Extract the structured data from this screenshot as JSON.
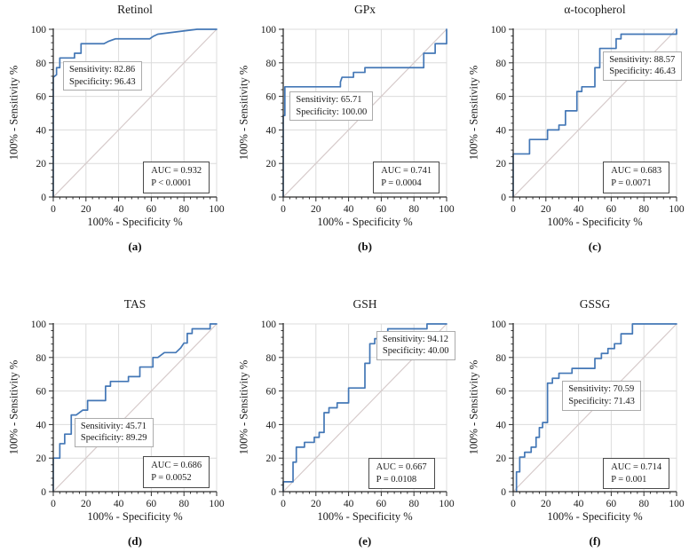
{
  "figure": {
    "layout": "2x3-roc-grid",
    "x_ticks": [
      0,
      20,
      40,
      60,
      80,
      100
    ],
    "y_ticks": [
      0,
      20,
      40,
      60,
      80,
      100
    ],
    "xlim": [
      0,
      100
    ],
    "ylim": [
      0,
      100
    ],
    "grid": true,
    "minor_tick_step": 4,
    "colors": {
      "roc_line": "#4377b6",
      "diagonal": "#d6caca",
      "grid": "#dcdcdc",
      "axis": "#2e2e2e",
      "text": "#1a1a1a",
      "sens_box_border": "#ababab",
      "auc_box_border": "#4a4a4a",
      "background": "#ffffff"
    }
  },
  "chart_data": [
    {
      "type": "line",
      "title": "Retinol",
      "panel_label": "(a)",
      "xlabel": "100% - Specificity %",
      "ylabel": "100% - Sensitivity %",
      "sensitivity": 82.86,
      "specificity": 96.43,
      "auc": 0.932,
      "p_value": "P < 0.0001",
      "sens_box": {
        "lines": [
          "Sensitivity: 82.86",
          "Specificity: 96.43"
        ],
        "x": 6,
        "y": 81
      },
      "auc_box": {
        "lines": [
          "AUC = 0.932",
          "P < 0.0001"
        ],
        "x": 55,
        "y": 21
      },
      "roc_points": [
        [
          0,
          0
        ],
        [
          0,
          71.4
        ],
        [
          2,
          72.9
        ],
        [
          2,
          77.1
        ],
        [
          4,
          77.1
        ],
        [
          4,
          82.9
        ],
        [
          13,
          82.9
        ],
        [
          13,
          85.7
        ],
        [
          17,
          85.7
        ],
        [
          17,
          91.4
        ],
        [
          31,
          91.4
        ],
        [
          34,
          92.9
        ],
        [
          38,
          94.3
        ],
        [
          59,
          94.3
        ],
        [
          61,
          95.7
        ],
        [
          64,
          97.1
        ],
        [
          88,
          100
        ],
        [
          100,
          100
        ]
      ]
    },
    {
      "type": "line",
      "title": "GPx",
      "panel_label": "(b)",
      "xlabel": "100% - Specificity %",
      "ylabel": "100% - Sensitivity %",
      "sensitivity": 65.71,
      "specificity": 100.0,
      "auc": 0.741,
      "p_value": "P = 0.0004",
      "sens_box": {
        "lines": [
          "Sensitivity: 65.71",
          "Specificity: 100.00"
        ],
        "x": 4,
        "y": 63
      },
      "auc_box": {
        "lines": [
          "AUC = 0.741",
          "P = 0.0004"
        ],
        "x": 55,
        "y": 21
      },
      "roc_points": [
        [
          0,
          0
        ],
        [
          0,
          48.6
        ],
        [
          1,
          48.6
        ],
        [
          1,
          65.7
        ],
        [
          35,
          65.7
        ],
        [
          35,
          68.6
        ],
        [
          36,
          71.4
        ],
        [
          43,
          71.4
        ],
        [
          43,
          74.3
        ],
        [
          50,
          74.3
        ],
        [
          50,
          77.1
        ],
        [
          86,
          77.1
        ],
        [
          86,
          85.7
        ],
        [
          93,
          85.7
        ],
        [
          93,
          91.4
        ],
        [
          100,
          91.4
        ],
        [
          100,
          100
        ]
      ]
    },
    {
      "type": "line",
      "title": "α-tocopherol",
      "panel_label": "(c)",
      "xlabel": "100% - Specificity %",
      "ylabel": "100% - Sensitivity %",
      "sensitivity": 88.57,
      "specificity": 46.43,
      "auc": 0.683,
      "p_value": "P = 0.0071",
      "sens_box": {
        "lines": [
          "Sensitivity: 88.57",
          "Specificity: 46.43"
        ],
        "x": 55,
        "y": 87
      },
      "auc_box": {
        "lines": [
          "AUC = 0.683",
          "P = 0.0071"
        ],
        "x": 55,
        "y": 21
      },
      "roc_points": [
        [
          0,
          0
        ],
        [
          0,
          25.7
        ],
        [
          10,
          25.7
        ],
        [
          10,
          34.3
        ],
        [
          21,
          34.3
        ],
        [
          21,
          40
        ],
        [
          28,
          40
        ],
        [
          28,
          42.9
        ],
        [
          32,
          42.9
        ],
        [
          32,
          51.4
        ],
        [
          39,
          51.4
        ],
        [
          39,
          62.9
        ],
        [
          42,
          62.9
        ],
        [
          42,
          65.7
        ],
        [
          50,
          65.7
        ],
        [
          50,
          77.1
        ],
        [
          53,
          77.1
        ],
        [
          53,
          88.6
        ],
        [
          63,
          88.6
        ],
        [
          63,
          94.3
        ],
        [
          66,
          94.3
        ],
        [
          66,
          97.1
        ],
        [
          100,
          97.1
        ],
        [
          100,
          100
        ]
      ]
    },
    {
      "type": "line",
      "title": "TAS",
      "panel_label": "(d)",
      "xlabel": "100% - Specificity %",
      "ylabel": "100% - Sensitivity %",
      "sensitivity": 45.71,
      "specificity": 89.29,
      "auc": 0.686,
      "p_value": "P = 0.0052",
      "sens_box": {
        "lines": [
          "Sensitivity: 45.71",
          "Specificity: 89.29"
        ],
        "x": 13,
        "y": 44
      },
      "auc_box": {
        "lines": [
          "AUC = 0.686",
          "P = 0.0052"
        ],
        "x": 55,
        "y": 21
      },
      "roc_points": [
        [
          0,
          0
        ],
        [
          0,
          20
        ],
        [
          4,
          20
        ],
        [
          4,
          28.6
        ],
        [
          7,
          28.6
        ],
        [
          7,
          34.3
        ],
        [
          11,
          34.3
        ],
        [
          11,
          45.7
        ],
        [
          14,
          45.7
        ],
        [
          16,
          47.1
        ],
        [
          18,
          48.6
        ],
        [
          21,
          48.6
        ],
        [
          21,
          54.3
        ],
        [
          32,
          54.3
        ],
        [
          32,
          62.9
        ],
        [
          35,
          62.9
        ],
        [
          35,
          65.7
        ],
        [
          46,
          65.7
        ],
        [
          46,
          68.6
        ],
        [
          53,
          68.6
        ],
        [
          53,
          74.3
        ],
        [
          61,
          74.3
        ],
        [
          61,
          80
        ],
        [
          64,
          80
        ],
        [
          68,
          82.9
        ],
        [
          75,
          82.9
        ],
        [
          78,
          85.7
        ],
        [
          80,
          88.6
        ],
        [
          82,
          88.6
        ],
        [
          82,
          94.3
        ],
        [
          85,
          94.3
        ],
        [
          85,
          97.1
        ],
        [
          96,
          97.1
        ],
        [
          96,
          100
        ],
        [
          100,
          100
        ]
      ]
    },
    {
      "type": "line",
      "title": "GSH",
      "panel_label": "(e)",
      "xlabel": "100% - Specificity %",
      "ylabel": "100% - Sensitivity %",
      "sensitivity": 94.12,
      "specificity": 40.0,
      "auc": 0.667,
      "p_value": "P = 0.0108",
      "sens_box": {
        "lines": [
          "Sensitivity: 94.12",
          "Specificity: 40.00"
        ],
        "x": 57,
        "y": 96
      },
      "auc_box": {
        "lines": [
          "AUC = 0.667",
          "P = 0.0108"
        ],
        "x": 52,
        "y": 20
      },
      "roc_points": [
        [
          0,
          0
        ],
        [
          0,
          5.9
        ],
        [
          6,
          5.9
        ],
        [
          6,
          17.6
        ],
        [
          8,
          17.6
        ],
        [
          8,
          26.5
        ],
        [
          13,
          26.5
        ],
        [
          13,
          29.4
        ],
        [
          19,
          29.4
        ],
        [
          19,
          32.4
        ],
        [
          22,
          32.4
        ],
        [
          22,
          35.3
        ],
        [
          25,
          35.3
        ],
        [
          25,
          47.1
        ],
        [
          28,
          47.1
        ],
        [
          28,
          50
        ],
        [
          33,
          50
        ],
        [
          33,
          52.9
        ],
        [
          40,
          52.9
        ],
        [
          40,
          61.8
        ],
        [
          50,
          61.8
        ],
        [
          50,
          76.5
        ],
        [
          53,
          76.5
        ],
        [
          53,
          88.2
        ],
        [
          56,
          88.2
        ],
        [
          56,
          91.2
        ],
        [
          59,
          91.2
        ],
        [
          59,
          94.1
        ],
        [
          64,
          94.1
        ],
        [
          64,
          97.1
        ],
        [
          88,
          97.1
        ],
        [
          88,
          100
        ],
        [
          100,
          100
        ]
      ]
    },
    {
      "type": "line",
      "title": "GSSG",
      "panel_label": "(f)",
      "xlabel": "100% - Specificity %",
      "ylabel": "100% - Sensitivity %",
      "sensitivity": 70.59,
      "specificity": 71.43,
      "auc": 0.714,
      "p_value": "P = 0.001",
      "sens_box": {
        "lines": [
          "Sensitivity: 70.59",
          "Specificity: 71.43"
        ],
        "x": 30,
        "y": 66
      },
      "auc_box": {
        "lines": [
          "AUC = 0.714",
          "P = 0.001"
        ],
        "x": 55,
        "y": 20
      },
      "roc_points": [
        [
          2,
          0
        ],
        [
          2,
          11.8
        ],
        [
          4,
          11.8
        ],
        [
          4,
          20.6
        ],
        [
          7,
          20.6
        ],
        [
          7,
          23.5
        ],
        [
          11,
          23.5
        ],
        [
          11,
          26.5
        ],
        [
          14,
          26.5
        ],
        [
          14,
          32.4
        ],
        [
          16,
          32.4
        ],
        [
          16,
          38.2
        ],
        [
          18,
          38.2
        ],
        [
          18,
          41.2
        ],
        [
          21,
          41.2
        ],
        [
          21,
          64.7
        ],
        [
          24,
          64.7
        ],
        [
          24,
          67.6
        ],
        [
          28,
          67.6
        ],
        [
          28,
          70.6
        ],
        [
          36,
          70.6
        ],
        [
          36,
          73.5
        ],
        [
          50,
          73.5
        ],
        [
          50,
          79.4
        ],
        [
          54,
          79.4
        ],
        [
          54,
          82.4
        ],
        [
          58,
          82.4
        ],
        [
          58,
          85.3
        ],
        [
          62,
          85.3
        ],
        [
          62,
          88.2
        ],
        [
          66,
          88.2
        ],
        [
          66,
          94.1
        ],
        [
          73,
          94.1
        ],
        [
          73,
          100
        ],
        [
          100,
          100
        ]
      ]
    }
  ]
}
